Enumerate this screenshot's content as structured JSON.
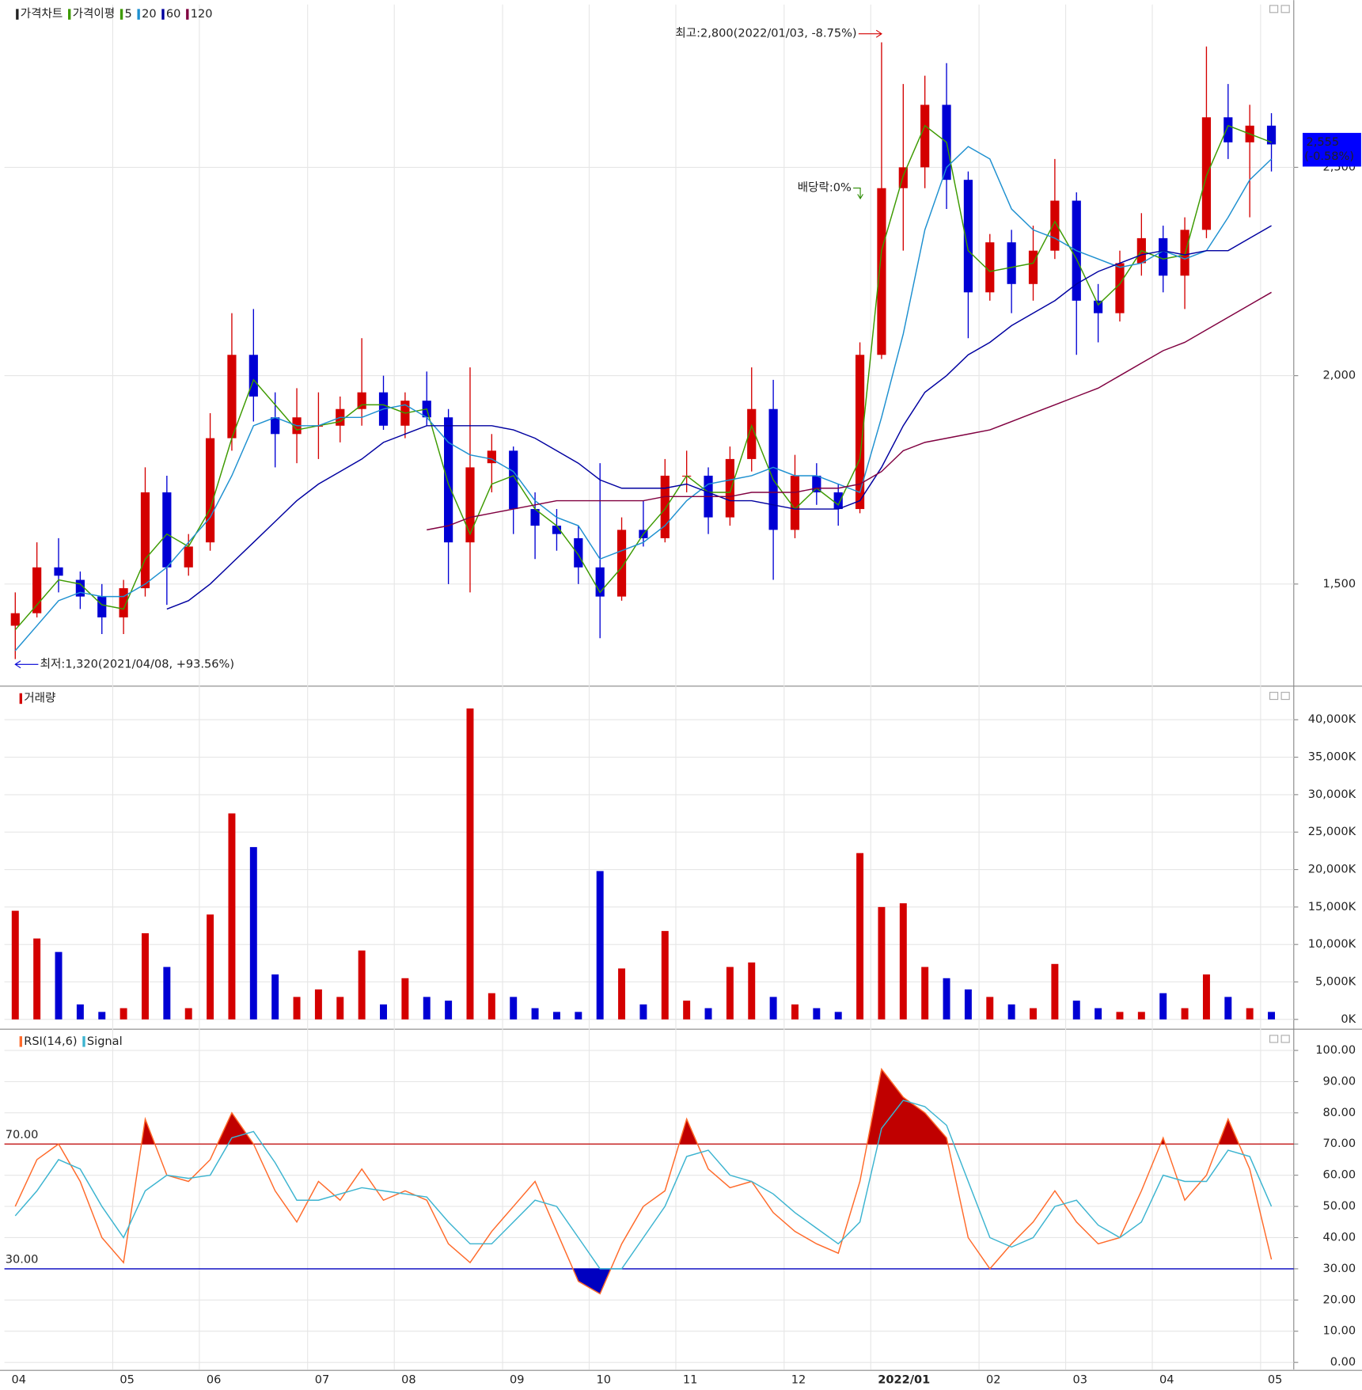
{
  "chart_data": [
    {
      "type": "candlestick",
      "title": "가격차트",
      "up_color": "#d40000",
      "down_color": "#0000d4",
      "open": [
        1400,
        1430,
        1540,
        1510,
        1470,
        1420,
        1490,
        1720,
        1540,
        1600,
        1850,
        2050,
        1900,
        1860,
        1880,
        1880,
        1920,
        1960,
        1880,
        1940,
        1900,
        1600,
        1790,
        1820,
        1680,
        1640,
        1610,
        1540,
        1470,
        1630,
        1610,
        1760,
        1760,
        1660,
        1800,
        1920,
        1630,
        1760,
        1720,
        1680,
        2050,
        2450,
        2500,
        2650,
        2470,
        2200,
        2320,
        2220,
        2300,
        2420,
        2180,
        2150,
        2270,
        2330,
        2240,
        2350,
        2620,
        2560,
        2600
      ],
      "high": [
        1480,
        1600,
        1610,
        1530,
        1500,
        1510,
        1780,
        1760,
        1620,
        1910,
        2150,
        2160,
        1960,
        1970,
        1960,
        1950,
        2090,
        2000,
        1960,
        2010,
        1920,
        2020,
        1860,
        1830,
        1720,
        1680,
        1640,
        1790,
        1660,
        1700,
        1800,
        1820,
        1780,
        1830,
        2020,
        1990,
        1810,
        1790,
        1740,
        2080,
        2800,
        2700,
        2720,
        2750,
        2490,
        2340,
        2350,
        2360,
        2520,
        2440,
        2220,
        2300,
        2390,
        2360,
        2380,
        2790,
        2700,
        2650,
        2630
      ],
      "low": [
        1320,
        1420,
        1480,
        1440,
        1380,
        1380,
        1470,
        1450,
        1520,
        1580,
        1820,
        1890,
        1780,
        1790,
        1800,
        1840,
        1880,
        1870,
        1850,
        1880,
        1500,
        1480,
        1720,
        1620,
        1560,
        1580,
        1500,
        1370,
        1460,
        1590,
        1600,
        1720,
        1620,
        1640,
        1770,
        1510,
        1610,
        1690,
        1640,
        1670,
        2040,
        2300,
        2450,
        2400,
        2090,
        2180,
        2150,
        2180,
        2280,
        2050,
        2080,
        2130,
        2240,
        2200,
        2160,
        2330,
        2520,
        2380,
        2490
      ],
      "close": [
        1430,
        1540,
        1520,
        1470,
        1420,
        1490,
        1720,
        1540,
        1590,
        1850,
        2050,
        1950,
        1860,
        1900,
        1880,
        1920,
        1960,
        1880,
        1940,
        1900,
        1600,
        1780,
        1820,
        1680,
        1640,
        1620,
        1540,
        1470,
        1630,
        1610,
        1760,
        1760,
        1660,
        1800,
        1920,
        1630,
        1760,
        1720,
        1680,
        2050,
        2450,
        2500,
        2650,
        2470,
        2200,
        2320,
        2220,
        2300,
        2420,
        2180,
        2150,
        2270,
        2330,
        2240,
        2350,
        2620,
        2560,
        2600,
        2555
      ],
      "ma_title": "가격이평",
      "ma": [
        {
          "name": "5",
          "color": "#3d9a00",
          "values": [
            1390,
            1450,
            1510,
            1500,
            1450,
            1440,
            1560,
            1620,
            1590,
            1680,
            1850,
            1990,
            1930,
            1870,
            1880,
            1890,
            1930,
            1930,
            1910,
            1920,
            1740,
            1620,
            1740,
            1760,
            1680,
            1640,
            1570,
            1480,
            1540,
            1620,
            1680,
            1760,
            1720,
            1720,
            1880,
            1750,
            1680,
            1730,
            1690,
            1800,
            2300,
            2480,
            2600,
            2560,
            2300,
            2250,
            2260,
            2270,
            2370,
            2280,
            2170,
            2220,
            2300,
            2280,
            2290,
            2480,
            2600,
            2580,
            2560
          ]
        },
        {
          "name": "20",
          "color": "#1e90d0",
          "values": [
            1340,
            1400,
            1460,
            1480,
            1470,
            1470,
            1500,
            1540,
            1600,
            1660,
            1760,
            1880,
            1900,
            1880,
            1880,
            1900,
            1900,
            1920,
            1930,
            1900,
            1840,
            1810,
            1800,
            1770,
            1700,
            1660,
            1640,
            1560,
            1580,
            1600,
            1640,
            1700,
            1740,
            1750,
            1760,
            1780,
            1760,
            1760,
            1740,
            1720,
            1900,
            2100,
            2350,
            2500,
            2550,
            2520,
            2400,
            2350,
            2330,
            2300,
            2280,
            2260,
            2270,
            2300,
            2280,
            2300,
            2380,
            2470,
            2520
          ]
        },
        {
          "name": "60",
          "color": "#0000a0",
          "values": [
            null,
            null,
            null,
            null,
            null,
            null,
            null,
            1440,
            1460,
            1500,
            1550,
            1600,
            1650,
            1700,
            1740,
            1770,
            1800,
            1840,
            1860,
            1880,
            1880,
            1880,
            1880,
            1870,
            1850,
            1820,
            1790,
            1750,
            1730,
            1730,
            1730,
            1740,
            1720,
            1700,
            1700,
            1690,
            1680,
            1680,
            1680,
            1700,
            1780,
            1880,
            1960,
            2000,
            2050,
            2080,
            2120,
            2150,
            2180,
            2220,
            2250,
            2270,
            2290,
            2300,
            2290,
            2300,
            2300,
            2330,
            2360
          ]
        },
        {
          "name": "120",
          "color": "#800040",
          "values": [
            null,
            null,
            null,
            null,
            null,
            null,
            null,
            null,
            null,
            null,
            null,
            null,
            null,
            null,
            null,
            null,
            null,
            null,
            null,
            1630,
            1640,
            1660,
            1670,
            1680,
            1690,
            1700,
            1700,
            1700,
            1700,
            1700,
            1710,
            1710,
            1710,
            1710,
            1720,
            1720,
            1720,
            1730,
            1730,
            1740,
            1770,
            1820,
            1840,
            1850,
            1860,
            1870,
            1890,
            1910,
            1930,
            1950,
            1970,
            2000,
            2030,
            2060,
            2080,
            2110,
            2140,
            2170,
            2200
          ]
        }
      ],
      "ylim": [
        1255,
        2880
      ],
      "yticks": [
        {
          "value": 1500,
          "label": "1,500"
        },
        {
          "value": 2000,
          "label": "2,000"
        },
        {
          "value": 2500,
          "label": "2,500"
        }
      ],
      "grid": true,
      "annotations": {
        "high": "최고:2,800(2022/01/03, -8.75%)",
        "low": "최저:1,320(2021/04/08, +93.56%)",
        "dividend": "배당락:0%"
      },
      "last_price": {
        "value": 2555,
        "label": "2,555",
        "change": "(-0.58%)",
        "color": "#0000ff"
      }
    },
    {
      "type": "bar",
      "title": "거래량",
      "values": [
        14500,
        10800,
        9000,
        2000,
        1000,
        1500,
        11500,
        7000,
        1500,
        14000,
        27500,
        23000,
        6000,
        3000,
        4000,
        3000,
        9200,
        2000,
        5500,
        3000,
        2500,
        41500,
        3500,
        3000,
        1500,
        1000,
        1000,
        19800,
        6800,
        2000,
        11800,
        2500,
        1500,
        7000,
        7600,
        3000,
        2000,
        1500,
        1000,
        22200,
        15000,
        15500,
        7000,
        5500,
        4000,
        3000,
        2000,
        1500,
        7400,
        2500,
        1500,
        1000,
        1000,
        3500,
        1500,
        6000,
        3000,
        1500,
        1000
      ],
      "ylim": [
        0,
        42000
      ],
      "yticks": [
        {
          "value": 0,
          "label": "0K"
        },
        {
          "value": 5000,
          "label": "5,000K"
        },
        {
          "value": 10000,
          "label": "10,000K"
        },
        {
          "value": 15000,
          "label": "15,000K"
        },
        {
          "value": 20000,
          "label": "20,000K"
        },
        {
          "value": 25000,
          "label": "25,000K"
        },
        {
          "value": 30000,
          "label": "30,000K"
        },
        {
          "value": 35000,
          "label": "35,000K"
        },
        {
          "value": 40000,
          "label": "40,000K"
        }
      ],
      "grid": true
    },
    {
      "type": "line",
      "categories": [
        "04",
        null,
        null,
        null,
        null,
        "05",
        null,
        null,
        null,
        "06",
        null,
        null,
        null,
        null,
        "07",
        null,
        null,
        null,
        "08",
        null,
        null,
        null,
        null,
        "09",
        null,
        null,
        null,
        "10",
        null,
        null,
        null,
        "11",
        null,
        null,
        null,
        null,
        "12",
        null,
        null,
        null,
        "2022/01",
        null,
        null,
        null,
        null,
        "02",
        null,
        null,
        null,
        "03",
        null,
        null,
        null,
        "04",
        null,
        null,
        null,
        null,
        "05"
      ],
      "series": [
        {
          "name": "RSI(14,6)",
          "color": "#ff6a2a",
          "values": [
            50,
            65,
            70,
            58,
            40,
            32,
            78,
            60,
            58,
            65,
            80,
            70,
            55,
            45,
            58,
            52,
            62,
            52,
            55,
            52,
            38,
            32,
            42,
            50,
            58,
            42,
            26,
            22,
            38,
            50,
            55,
            78,
            62,
            56,
            58,
            48,
            42,
            38,
            35,
            58,
            94,
            85,
            80,
            72,
            40,
            30,
            38,
            45,
            55,
            45,
            38,
            40,
            55,
            72,
            52,
            60,
            78,
            62,
            33
          ]
        },
        {
          "name": "Signal",
          "color": "#3cb4d0",
          "values": [
            47,
            55,
            65,
            62,
            50,
            40,
            55,
            60,
            59,
            60,
            72,
            74,
            64,
            52,
            52,
            54,
            56,
            55,
            54,
            53,
            45,
            38,
            38,
            45,
            52,
            50,
            40,
            30,
            30,
            40,
            50,
            66,
            68,
            60,
            58,
            54,
            48,
            43,
            38,
            45,
            75,
            84,
            82,
            76,
            58,
            40,
            37,
            40,
            50,
            52,
            44,
            40,
            45,
            60,
            58,
            58,
            68,
            66,
            50
          ]
        }
      ],
      "ylim": [
        0,
        100
      ],
      "yticks": [
        {
          "value": 0,
          "label": "0.00"
        },
        {
          "value": 10,
          "label": "10.00"
        },
        {
          "value": 20,
          "label": "20.00"
        },
        {
          "value": 30,
          "label": "30.00"
        },
        {
          "value": 40,
          "label": "40.00"
        },
        {
          "value": 50,
          "label": "50.00"
        },
        {
          "value": 60,
          "label": "60.00"
        },
        {
          "value": 70,
          "label": "70.00"
        },
        {
          "value": 80,
          "label": "80.00"
        },
        {
          "value": 90,
          "label": "90.00"
        },
        {
          "value": 100,
          "label": "100.00"
        }
      ],
      "grid": true,
      "reference_lines": [
        {
          "value": 70,
          "label": "70.00",
          "color": "#c00000",
          "fill": "above"
        },
        {
          "value": 30,
          "label": "30.00",
          "color": "#0000c0",
          "fill": "below"
        }
      ]
    }
  ]
}
